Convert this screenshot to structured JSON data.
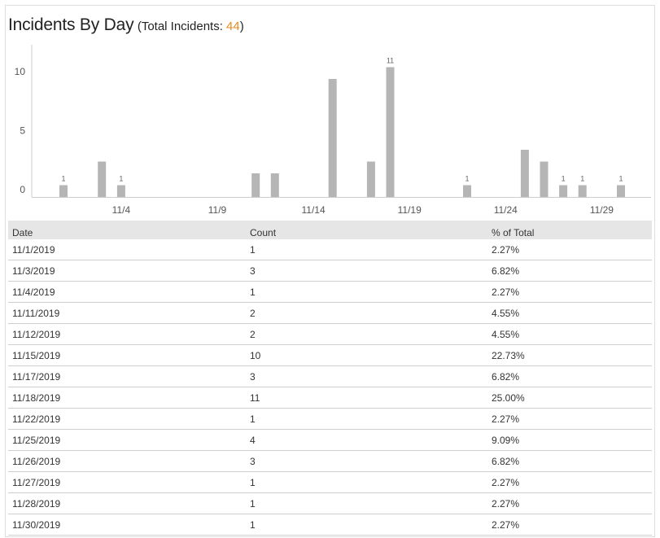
{
  "header": {
    "title": "Incidents By Day",
    "subtitle_prefix": "(Total Incidents: ",
    "total": "44",
    "subtitle_suffix": ")"
  },
  "chart_data": {
    "type": "bar",
    "title": "Incidents By Day",
    "xlabel": "",
    "ylabel": "",
    "ylim": [
      0,
      12
    ],
    "y_ticks": [
      0,
      5,
      10
    ],
    "x_ticks": [
      "11/4",
      "11/9",
      "11/14",
      "11/19",
      "11/24",
      "11/29"
    ],
    "x_tick_days": [
      4,
      9,
      14,
      19,
      24,
      29
    ],
    "days": [
      1,
      3,
      4,
      11,
      12,
      15,
      17,
      18,
      22,
      25,
      26,
      27,
      28,
      30
    ],
    "values": [
      1,
      3,
      1,
      2,
      2,
      10,
      3,
      11,
      1,
      4,
      3,
      1,
      1,
      1
    ],
    "labeled": [
      true,
      false,
      true,
      false,
      false,
      false,
      false,
      true,
      true,
      false,
      false,
      true,
      true,
      true
    ],
    "bar_color": "#b5b5b5",
    "grid": false,
    "legend": "none"
  },
  "table": {
    "columns": [
      "Date",
      "Count",
      "% of Total"
    ],
    "rows": [
      [
        "11/1/2019",
        "1",
        "2.27%"
      ],
      [
        "11/3/2019",
        "3",
        "6.82%"
      ],
      [
        "11/4/2019",
        "1",
        "2.27%"
      ],
      [
        "11/11/2019",
        "2",
        "4.55%"
      ],
      [
        "11/12/2019",
        "2",
        "4.55%"
      ],
      [
        "11/15/2019",
        "10",
        "22.73%"
      ],
      [
        "11/17/2019",
        "3",
        "6.82%"
      ],
      [
        "11/18/2019",
        "11",
        "25.00%"
      ],
      [
        "11/22/2019",
        "1",
        "2.27%"
      ],
      [
        "11/25/2019",
        "4",
        "9.09%"
      ],
      [
        "11/26/2019",
        "3",
        "6.82%"
      ],
      [
        "11/27/2019",
        "1",
        "2.27%"
      ],
      [
        "11/28/2019",
        "1",
        "2.27%"
      ],
      [
        "11/30/2019",
        "1",
        "2.27%"
      ]
    ]
  },
  "colors": {
    "accent": "#e8891e",
    "header_bg": "#e6e6e6",
    "row_border": "#cfcfcf"
  }
}
